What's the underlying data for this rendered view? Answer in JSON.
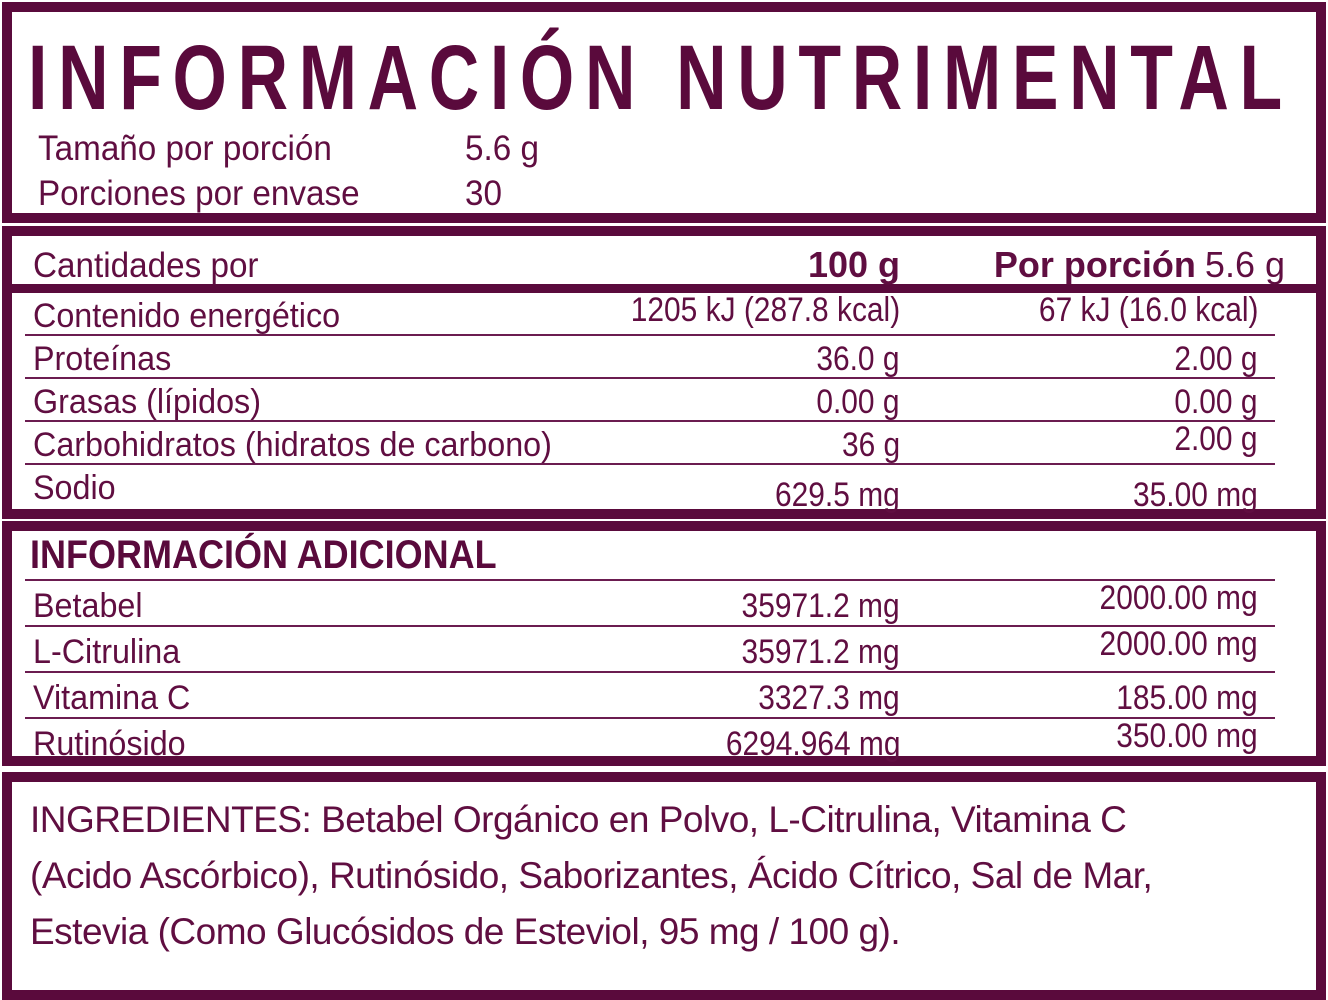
{
  "colors": {
    "maroon": "#5a0a3c"
  },
  "header": {
    "title": "INFORMACIÓN NUTRIMENTAL",
    "serving_size_label": "Tamaño por porción",
    "serving_size_value": "5.6 g",
    "servings_label": "Porciones por envase",
    "servings_value": "30"
  },
  "nutrition_table": {
    "amounts_label": "Cantidades por",
    "col_100g": "100 g",
    "col_portion_label": "Por porción",
    "col_portion_value": "5.6 g",
    "rows": [
      {
        "label": "Contenido energético",
        "per_100g": "1205 kJ (287.8 kcal)",
        "per_portion": "67 kJ (16.0 kcal)"
      },
      {
        "label": "Proteínas",
        "per_100g": "36.0 g",
        "per_portion": "2.00 g"
      },
      {
        "label": "Grasas (lípidos)",
        "per_100g": "0.00 g",
        "per_portion": "0.00 g"
      },
      {
        "label": "Carbohidratos (hidratos de carbono)",
        "per_100g": "36 g",
        "per_portion": "2.00 g"
      },
      {
        "label": "Sodio",
        "per_100g": "629.5 mg",
        "per_portion": "35.00 mg"
      }
    ]
  },
  "additional_table": {
    "title": "INFORMACIÓN ADICIONAL",
    "rows": [
      {
        "label": "Betabel",
        "per_100g": "35971.2 mg",
        "per_portion": "2000.00 mg"
      },
      {
        "label": "L-Citrulina",
        "per_100g": "35971.2 mg",
        "per_portion": "2000.00 mg"
      },
      {
        "label": "Vitamina C",
        "per_100g": "3327.3 mg",
        "per_portion": "185.00 mg"
      },
      {
        "label": "Rutinósido",
        "per_100g": "6294.964 mg",
        "per_portion": "350.00 mg"
      }
    ]
  },
  "ingredients": {
    "lines": [
      "INGREDIENTES: Betabel Orgánico en Polvo, L-Citrulina, Vitamina C",
      "(Acido Ascórbico), Rutinósido, Saborizantes, Ácido Cítrico, Sal de Mar,",
      "Estevia (Como Glucósidos de Esteviol, 95 mg / 100 g)."
    ]
  }
}
